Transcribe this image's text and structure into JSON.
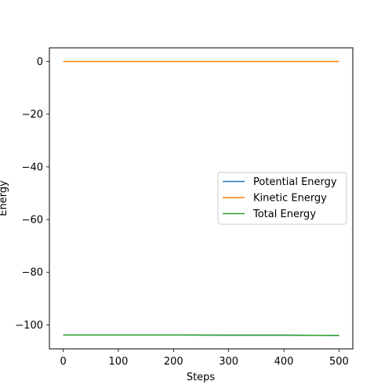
{
  "chart_data": {
    "type": "line",
    "title": "",
    "xlabel": "Steps",
    "ylabel": "Energy",
    "xlim": [
      -25,
      525
    ],
    "ylim": [
      -109.1,
      5.2
    ],
    "xticks": [
      0,
      100,
      200,
      300,
      400,
      500
    ],
    "xtick_labels": [
      "0",
      "100",
      "200",
      "300",
      "400",
      "500"
    ],
    "yticks": [
      0,
      -20,
      -40,
      -60,
      -80,
      -100
    ],
    "ytick_labels": [
      "0",
      "−20",
      "−40",
      "−60",
      "−80",
      "−100"
    ],
    "grid": false,
    "legend_position": "center-right",
    "series": [
      {
        "name": "Potential Energy",
        "color": "#1f77b4",
        "x": [
          0,
          100,
          200,
          300,
          400,
          500
        ],
        "y": [
          -103.8,
          -103.8,
          -103.8,
          -103.9,
          -103.9,
          -104.0
        ]
      },
      {
        "name": "Kinetic Energy",
        "color": "#ff7f0e",
        "x": [
          0,
          100,
          200,
          300,
          400,
          500
        ],
        "y": [
          0.0,
          0.0,
          0.0,
          0.0,
          0.0,
          0.0
        ]
      },
      {
        "name": "Total Energy",
        "color": "#2ca02c",
        "x": [
          0,
          100,
          200,
          300,
          400,
          500
        ],
        "y": [
          -103.8,
          -103.8,
          -103.8,
          -103.9,
          -103.9,
          -104.0
        ]
      }
    ]
  }
}
